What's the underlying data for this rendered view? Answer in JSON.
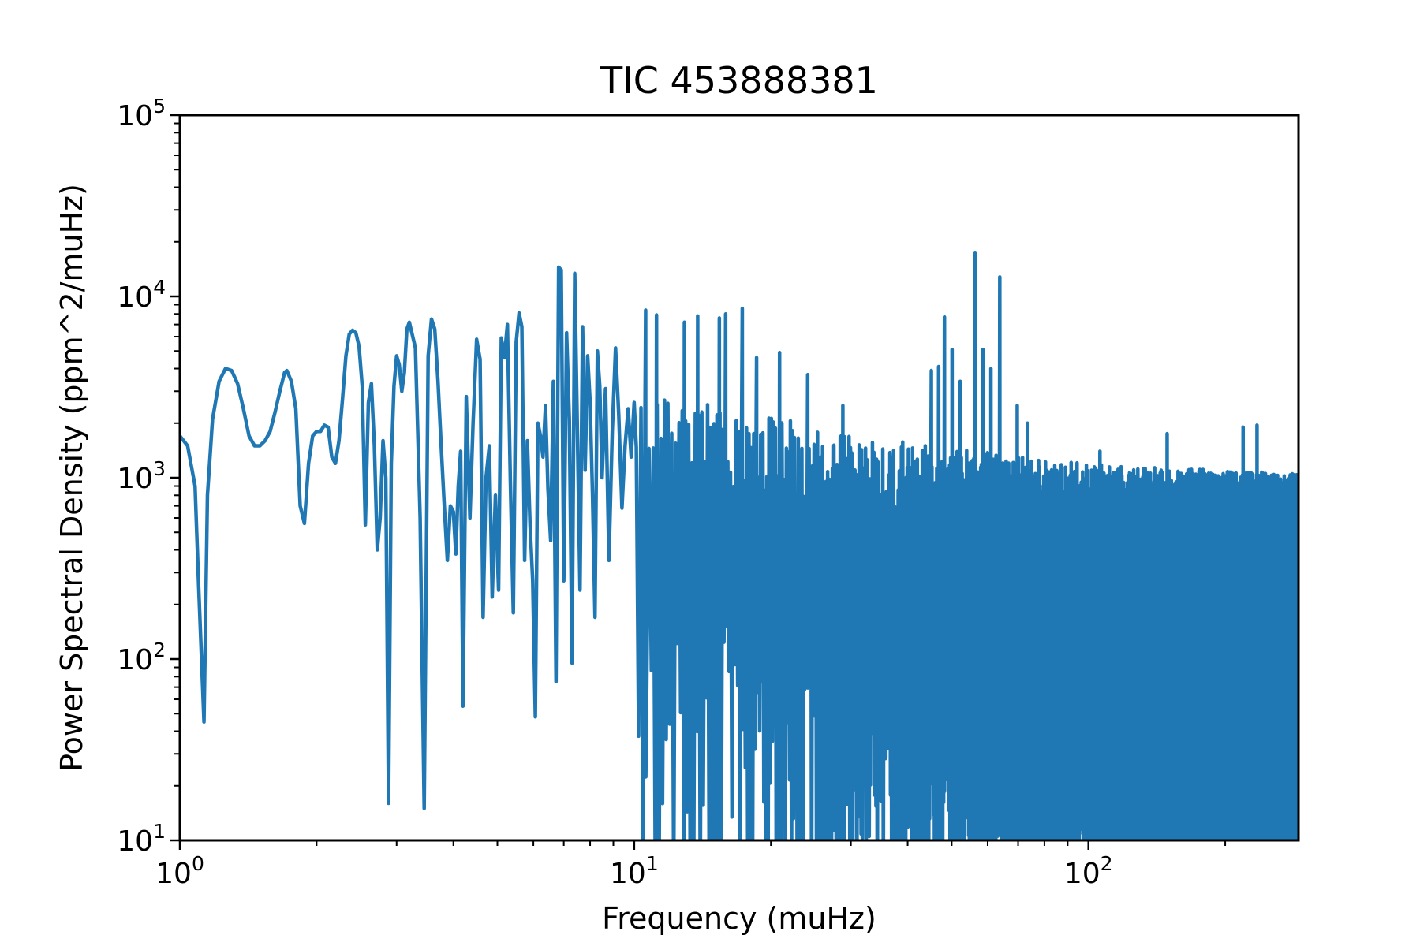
{
  "chart_data": {
    "type": "line",
    "title": "TIC 453888381",
    "xlabel": "Frequency (muHz)",
    "ylabel": "Power Spectral Density (ppm^2/muHz)",
    "xscale": "log",
    "yscale": "log",
    "xlim": [
      1,
      290
    ],
    "ylim": [
      10,
      100000
    ],
    "grid": false,
    "legend": "none",
    "x_ticks": [
      {
        "value": 1,
        "base": "10",
        "exp": "0"
      },
      {
        "value": 10,
        "base": "10",
        "exp": "1"
      },
      {
        "value": 100,
        "base": "10",
        "exp": "2"
      }
    ],
    "y_ticks": [
      {
        "value": 10,
        "base": "10",
        "exp": "1"
      },
      {
        "value": 100,
        "base": "10",
        "exp": "2"
      },
      {
        "value": 1000,
        "base": "10",
        "exp": "3"
      },
      {
        "value": 10000,
        "base": "10",
        "exp": "4"
      },
      {
        "value": 100000,
        "base": "10",
        "exp": "5"
      }
    ],
    "series": [
      {
        "color": "#1f77b4",
        "x": [
          1.0,
          1.04,
          1.08,
          1.1,
          1.13,
          1.15,
          1.18,
          1.22,
          1.26,
          1.3,
          1.34,
          1.38,
          1.42,
          1.46,
          1.5,
          1.54,
          1.58,
          1.62,
          1.66,
          1.7,
          1.72,
          1.76,
          1.8,
          1.84,
          1.88,
          1.92,
          1.96,
          2.0,
          2.04,
          2.08,
          2.12,
          2.16,
          2.2,
          2.24,
          2.28,
          2.32,
          2.36,
          2.4,
          2.44,
          2.48,
          2.52,
          2.56,
          2.6,
          2.64,
          2.68,
          2.72,
          2.76,
          2.8,
          2.84,
          2.88,
          2.92,
          2.96,
          3.0,
          3.04,
          3.08,
          3.12,
          3.16,
          3.2,
          3.3,
          3.38,
          3.45,
          3.52,
          3.58,
          3.64,
          3.7,
          3.76,
          3.82,
          3.88,
          3.94,
          4.0,
          4.05,
          4.1,
          4.15,
          4.2,
          4.27,
          4.35,
          4.42,
          4.5,
          4.58,
          4.65,
          4.72,
          4.8,
          4.87,
          4.95,
          5.03,
          5.1,
          5.18,
          5.26,
          5.34,
          5.42,
          5.5,
          5.58,
          5.66,
          5.74,
          5.82,
          5.9,
          5.98,
          6.06,
          6.14,
          6.22,
          6.3,
          6.38,
          6.46,
          6.55,
          6.64,
          6.73,
          6.82,
          6.91,
          7.0,
          7.1,
          7.2,
          7.3,
          7.4,
          7.5,
          7.6,
          7.7,
          7.8,
          7.9,
          8.0,
          8.1,
          8.2,
          8.3,
          8.4,
          8.5,
          8.65,
          8.8,
          8.95,
          9.1,
          9.25,
          9.4,
          9.55,
          9.7,
          9.85,
          10.0
        ],
        "y": [
          1700,
          1500,
          900,
          250,
          45,
          800,
          2100,
          3400,
          4000,
          3900,
          3300,
          2400,
          1700,
          1500,
          1500,
          1600,
          1800,
          2300,
          3000,
          3800,
          3900,
          3400,
          2400,
          700,
          560,
          1200,
          1700,
          1800,
          1800,
          1950,
          1900,
          1300,
          1200,
          1600,
          2700,
          4700,
          6200,
          6500,
          6300,
          5300,
          3200,
          550,
          2600,
          3300,
          1500,
          400,
          600,
          1600,
          1000,
          16,
          1200,
          3200,
          4700,
          4200,
          3000,
          3800,
          6600,
          7200,
          5200,
          600,
          15,
          4700,
          7500,
          6600,
          3400,
          1500,
          700,
          350,
          700,
          650,
          380,
          900,
          1400,
          55,
          2800,
          600,
          2000,
          5800,
          4500,
          170,
          1000,
          1500,
          220,
          800,
          240,
          5900,
          4600,
          7000,
          950,
          180,
          5600,
          8100,
          6800,
          350,
          1600,
          550,
          270,
          48,
          2000,
          1700,
          1300,
          2500,
          870,
          450,
          3400,
          75,
          14500,
          14000,
          270,
          6300,
          2100,
          95,
          13400,
          1800,
          240,
          6800,
          1100,
          4700,
          2600,
          780,
          170,
          5000,
          3200,
          1000,
          3100,
          350,
          1800,
          5200,
          2200,
          680,
          1500,
          2400,
          1300,
          2600
        ],
        "noise_x_range": [
          10,
          290
        ],
        "noise_floor": 10,
        "noise_envelope": [
          {
            "x": 10,
            "y": 2700
          },
          {
            "x": 12,
            "y": 2800
          },
          {
            "x": 15,
            "y": 2600
          },
          {
            "x": 20,
            "y": 2200
          },
          {
            "x": 30,
            "y": 1700
          },
          {
            "x": 50,
            "y": 1500
          },
          {
            "x": 80,
            "y": 1250
          },
          {
            "x": 120,
            "y": 1150
          },
          {
            "x": 200,
            "y": 1100
          },
          {
            "x": 290,
            "y": 1050
          }
        ],
        "noise_peaks": [
          {
            "x": 10.6,
            "y": 8400
          },
          {
            "x": 11.2,
            "y": 7900
          },
          {
            "x": 12.9,
            "y": 7200
          },
          {
            "x": 13.8,
            "y": 7800
          },
          {
            "x": 15.4,
            "y": 7600
          },
          {
            "x": 15.9,
            "y": 8000
          },
          {
            "x": 17.3,
            "y": 8600
          },
          {
            "x": 18.6,
            "y": 4600
          },
          {
            "x": 20.9,
            "y": 4900
          },
          {
            "x": 24.1,
            "y": 3700
          },
          {
            "x": 28.8,
            "y": 2500
          },
          {
            "x": 45.1,
            "y": 3900
          },
          {
            "x": 46.8,
            "y": 4100
          },
          {
            "x": 48.2,
            "y": 7700
          },
          {
            "x": 50.1,
            "y": 5100
          },
          {
            "x": 52.2,
            "y": 3400
          },
          {
            "x": 56.3,
            "y": 17300
          },
          {
            "x": 58.6,
            "y": 5100
          },
          {
            "x": 61.0,
            "y": 4000
          },
          {
            "x": 63.8,
            "y": 12800
          },
          {
            "x": 69.7,
            "y": 2500
          },
          {
            "x": 73.4,
            "y": 2000
          },
          {
            "x": 106.0,
            "y": 1400
          },
          {
            "x": 149.0,
            "y": 1750
          },
          {
            "x": 219.0,
            "y": 1900
          },
          {
            "x": 235.0,
            "y": 1950
          }
        ]
      }
    ]
  }
}
